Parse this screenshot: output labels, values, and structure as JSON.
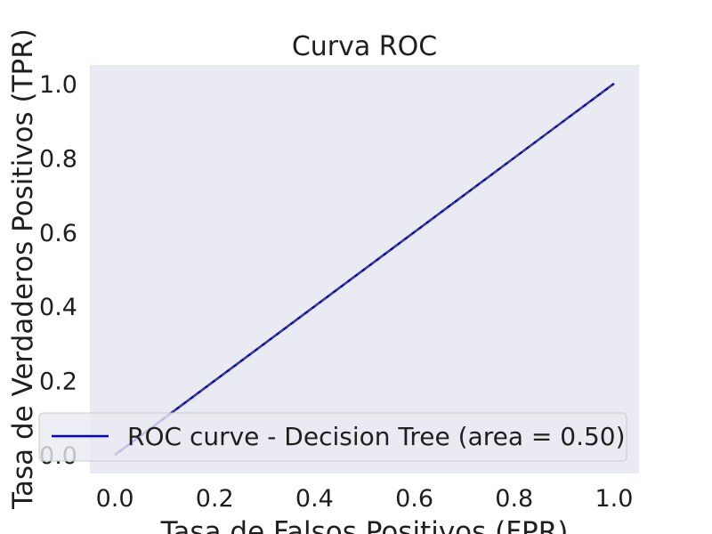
{
  "chart_data": {
    "type": "line",
    "title": "Curva ROC",
    "xlabel": "Tasa de Falsos Positivos (FPR)",
    "ylabel": "Tasa de Verdaderos Positivos (TPR)",
    "xlim": [
      -0.05,
      1.05
    ],
    "ylim": [
      -0.05,
      1.05
    ],
    "x_ticks": [
      0.0,
      0.2,
      0.4,
      0.6,
      0.8,
      1.0
    ],
    "y_ticks": [
      0.0,
      0.2,
      0.4,
      0.6,
      0.8,
      1.0
    ],
    "x_tick_labels": [
      "0.0",
      "0.2",
      "0.4",
      "0.6",
      "0.8",
      "1.0"
    ],
    "y_tick_labels": [
      "0.0",
      "0.2",
      "0.4",
      "0.6",
      "0.8",
      "1.0"
    ],
    "grid": false,
    "legend_position": "lower-right",
    "series": [
      {
        "name": "ROC curve - Decision Tree (area = 0.50)",
        "x": [
          0.0,
          1.0
        ],
        "y": [
          0.0,
          1.0
        ],
        "color": "#0000ee",
        "style": "solid"
      },
      {
        "x": [
          0.0,
          1.0
        ],
        "y": [
          0.0,
          1.0
        ],
        "color": "#4d4d4d",
        "style": "dashed"
      }
    ],
    "colors": {
      "plot_background": "#eaeaf2",
      "page_background": "#ffffff"
    }
  }
}
